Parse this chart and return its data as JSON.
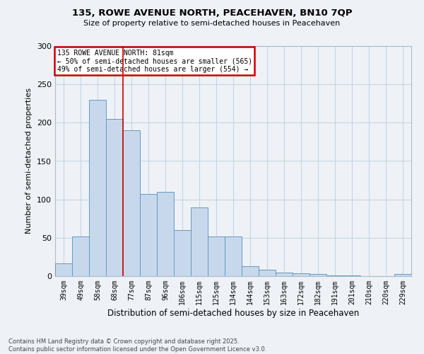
{
  "title_line1": "135, ROWE AVENUE NORTH, PEACEHAVEN, BN10 7QP",
  "title_line2": "Size of property relative to semi-detached houses in Peacehaven",
  "xlabel": "Distribution of semi-detached houses by size in Peacehaven",
  "ylabel": "Number of semi-detached properties",
  "categories": [
    "39sqm",
    "49sqm",
    "58sqm",
    "68sqm",
    "77sqm",
    "87sqm",
    "96sqm",
    "106sqm",
    "115sqm",
    "125sqm",
    "134sqm",
    "144sqm",
    "153sqm",
    "163sqm",
    "172sqm",
    "182sqm",
    "191sqm",
    "201sqm",
    "210sqm",
    "220sqm",
    "229sqm"
  ],
  "values": [
    17,
    52,
    230,
    205,
    190,
    107,
    110,
    60,
    90,
    52,
    52,
    13,
    8,
    5,
    4,
    3,
    1,
    1,
    0,
    0,
    3
  ],
  "bar_color": "#c8d8ec",
  "bar_edge_color": "#6699bb",
  "grid_color": "#c8d4e0",
  "background_color": "#eef2f7",
  "annotation_text": "135 ROWE AVENUE NORTH: 81sqm\n← 50% of semi-detached houses are smaller (565)\n49% of semi-detached houses are larger (554) →",
  "annotation_box_color": "#ffffff",
  "annotation_box_edge": "#cc0000",
  "marker_bar_index": 4,
  "ylim": [
    0,
    300
  ],
  "yticks": [
    0,
    50,
    100,
    150,
    200,
    250,
    300
  ],
  "footer_line1": "Contains HM Land Registry data © Crown copyright and database right 2025.",
  "footer_line2": "Contains public sector information licensed under the Open Government Licence v3.0."
}
